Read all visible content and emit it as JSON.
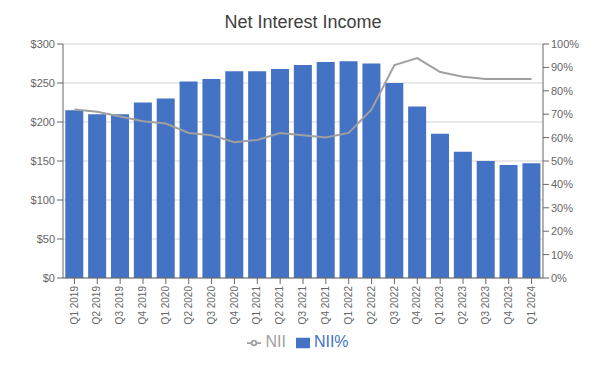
{
  "chart_data": {
    "type": "bar",
    "title": "Net Interest Income",
    "categories": [
      "Q1 2019",
      "Q2 2019",
      "Q3 2019",
      "Q4 2019",
      "Q1 2020",
      "Q2 2020",
      "Q3 2020",
      "Q4 2020",
      "Q1 2021",
      "Q2 2021",
      "Q3 2021",
      "Q4 2021",
      "Q1 2022",
      "Q2 2022",
      "Q3 2022",
      "Q4 2022",
      "Q1 2023",
      "Q2 2023",
      "Q3 2023",
      "Q4 2023",
      "Q1 2024"
    ],
    "series": [
      {
        "name": "NII%",
        "type": "bar",
        "color": "#4472C4",
        "values": [
          215,
          210,
          210,
          225,
          230,
          252,
          255,
          265,
          265,
          268,
          273,
          277,
          278,
          275,
          250,
          220,
          185,
          162,
          150,
          145,
          147
        ]
      },
      {
        "name": "NII",
        "type": "line",
        "color": "#a0a0a0",
        "axis": "y2",
        "values": [
          72,
          71,
          69,
          67,
          66,
          62,
          61,
          58,
          59,
          62,
          61,
          60,
          62,
          72,
          91,
          94,
          88,
          86,
          85,
          85,
          85
        ]
      }
    ],
    "ylim": [
      0,
      300
    ],
    "yticks": [
      {
        "value": 0,
        "label": "$0"
      },
      {
        "value": 50,
        "label": "$50"
      },
      {
        "value": 100,
        "label": "$100"
      },
      {
        "value": 150,
        "label": "$150"
      },
      {
        "value": 200,
        "label": "$200"
      },
      {
        "value": 250,
        "label": "$250"
      },
      {
        "value": 300,
        "label": "$300"
      }
    ],
    "y2lim": [
      0,
      100
    ],
    "y2ticks": [
      {
        "value": 0,
        "label": "0%"
      },
      {
        "value": 10,
        "label": "10%"
      },
      {
        "value": 20,
        "label": "20%"
      },
      {
        "value": 30,
        "label": "30%"
      },
      {
        "value": 40,
        "label": "40%"
      },
      {
        "value": 50,
        "label": "50%"
      },
      {
        "value": 60,
        "label": "60%"
      },
      {
        "value": 70,
        "label": "70%"
      },
      {
        "value": 80,
        "label": "80%"
      },
      {
        "value": 90,
        "label": "90%"
      },
      {
        "value": 100,
        "label": "100%"
      }
    ],
    "grid": true,
    "legend": "bottom"
  }
}
